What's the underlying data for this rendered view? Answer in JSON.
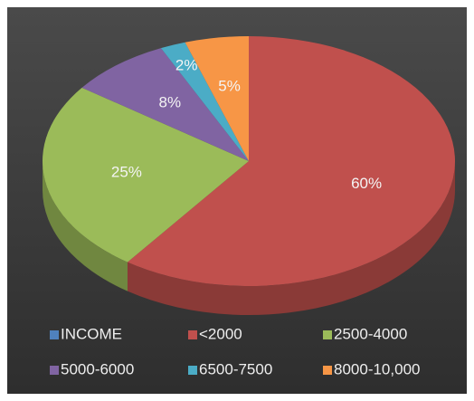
{
  "chart_data": {
    "type": "pie",
    "categories": [
      "INCOME",
      "<2000",
      "2500-4000",
      "5000-6000",
      "6500-7500",
      "8000-10,000"
    ],
    "values": [
      null,
      60,
      25,
      8,
      2,
      5
    ],
    "value_labels": [
      null,
      "60%",
      "25%",
      "8%",
      "2%",
      "5%"
    ],
    "colors": [
      "#4f81bd",
      "#c0504d",
      "#9bbb59",
      "#8064a2",
      "#4bacc6",
      "#f79646"
    ],
    "legend": "bottom"
  }
}
